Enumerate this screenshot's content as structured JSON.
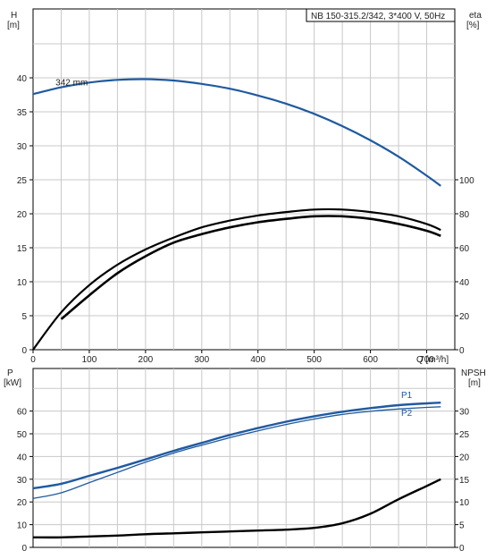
{
  "chart_data": [
    {
      "type": "line",
      "title": "NB 150-315.2/342, 3*400 V, 50Hz",
      "left_axis": {
        "label": "H",
        "unit": "[m]",
        "range": [
          0,
          45
        ],
        "ticks": [
          0,
          5,
          10,
          15,
          20,
          25,
          30,
          35,
          40
        ]
      },
      "right_axis": {
        "label": "eta",
        "unit": "[%]",
        "range": [
          0,
          100
        ],
        "ticks": [
          0,
          20,
          40,
          60,
          80,
          100
        ]
      },
      "x_axis": {
        "label": "Q",
        "unit": "[m³/h]",
        "range": [
          0,
          750
        ],
        "ticks": [
          0,
          100,
          200,
          300,
          400,
          500,
          600,
          700
        ]
      },
      "grid": true,
      "series": [
        {
          "name": "342 mm",
          "axis": "left",
          "color": "#1f5aa0",
          "x": [
            0,
            50,
            100,
            150,
            200,
            250,
            300,
            350,
            400,
            450,
            500,
            550,
            600,
            650,
            700,
            725
          ],
          "y": [
            37.6,
            38.6,
            39.3,
            39.7,
            39.8,
            39.6,
            39.1,
            38.4,
            37.4,
            36.2,
            34.7,
            32.9,
            30.8,
            28.4,
            25.6,
            24.1
          ]
        },
        {
          "axis": "right",
          "color": "#000000",
          "x": [
            0,
            50,
            100,
            150,
            200,
            250,
            300,
            350,
            400,
            450,
            500,
            550,
            600,
            650,
            700,
            725
          ],
          "y": [
            0,
            22,
            38,
            50,
            59,
            66,
            72,
            76,
            79,
            81,
            82.5,
            82.5,
            81,
            78.5,
            74,
            70.5
          ]
        },
        {
          "axis": "right",
          "color": "#000000",
          "x": [
            50,
            100,
            150,
            200,
            250,
            300,
            350,
            400,
            450,
            500,
            550,
            600,
            650,
            700,
            725
          ],
          "y": [
            18,
            32,
            45,
            55,
            63,
            68,
            72,
            75,
            77,
            78.5,
            78.5,
            77,
            74,
            70,
            67
          ]
        }
      ]
    },
    {
      "type": "line",
      "left_axis": {
        "label": "P",
        "unit": "[kW]",
        "range": [
          0,
          70
        ],
        "ticks": [
          0,
          10,
          20,
          30,
          40,
          50,
          60
        ]
      },
      "right_axis": {
        "label": "NPSH",
        "unit": "[m]",
        "range": [
          0,
          35
        ],
        "ticks": [
          0,
          5,
          10,
          15,
          20,
          25,
          30
        ]
      },
      "x_axis": {
        "range": [
          0,
          750
        ]
      },
      "grid": true,
      "series": [
        {
          "name": "P1",
          "axis": "left",
          "color": "#1f5aa0",
          "x": [
            0,
            50,
            100,
            150,
            200,
            250,
            300,
            350,
            400,
            450,
            500,
            550,
            600,
            650,
            700,
            725
          ],
          "y": [
            26,
            28,
            31.5,
            35,
            38.7,
            42.5,
            46,
            49.5,
            52.5,
            55.3,
            57.7,
            59.7,
            61.3,
            62.6,
            63.4,
            63.7
          ]
        },
        {
          "name": "P2",
          "axis": "left",
          "color": "#1f5aa0",
          "x": [
            0,
            50,
            100,
            150,
            200,
            250,
            300,
            350,
            400,
            450,
            500,
            550,
            600,
            650,
            700,
            725
          ],
          "y": [
            21.5,
            24,
            28.5,
            33,
            37.5,
            41.5,
            45,
            48.3,
            51.3,
            54.1,
            56.5,
            58.5,
            59.9,
            60.9,
            61.6,
            61.9
          ]
        },
        {
          "name": "NPSH",
          "axis": "right",
          "color": "#000000",
          "x": [
            0,
            50,
            100,
            150,
            200,
            250,
            300,
            350,
            400,
            450,
            500,
            550,
            600,
            650,
            700,
            725
          ],
          "y": [
            2.2,
            2.2,
            2.4,
            2.6,
            2.9,
            3.1,
            3.3,
            3.5,
            3.7,
            3.9,
            4.3,
            5.3,
            7.4,
            10.6,
            13.5,
            15
          ]
        }
      ]
    }
  ]
}
